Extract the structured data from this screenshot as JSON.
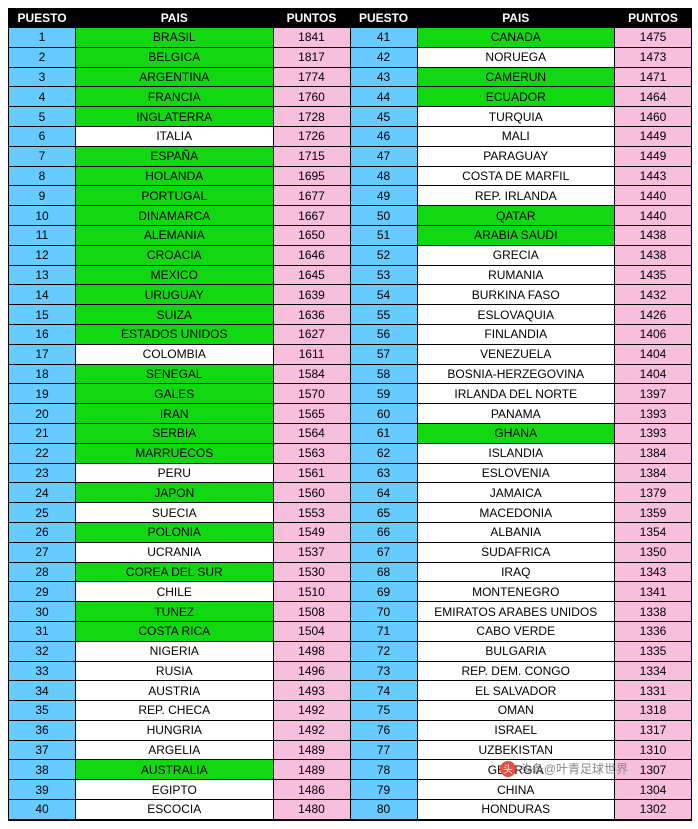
{
  "headers": {
    "puesto": "PUESTO",
    "pais": "PAIS",
    "puntos": "PUNTOS"
  },
  "colors": {
    "blue": "#66ccff",
    "green": "#11d811",
    "white": "#ffffff",
    "pink": "#f7bfdd",
    "header_bg": "#000000",
    "header_fg": "#ffffff"
  },
  "left": [
    {
      "rank": 1,
      "country": "BRASIL",
      "points": 1841,
      "pais_color": "green"
    },
    {
      "rank": 2,
      "country": "BELGICA",
      "points": 1817,
      "pais_color": "green"
    },
    {
      "rank": 3,
      "country": "ARGENTINA",
      "points": 1774,
      "pais_color": "green"
    },
    {
      "rank": 4,
      "country": "FRANCIA",
      "points": 1760,
      "pais_color": "green"
    },
    {
      "rank": 5,
      "country": "INGLATERRA",
      "points": 1728,
      "pais_color": "green"
    },
    {
      "rank": 6,
      "country": "ITALIA",
      "points": 1726,
      "pais_color": "white"
    },
    {
      "rank": 7,
      "country": "ESPAÑA",
      "points": 1715,
      "pais_color": "green"
    },
    {
      "rank": 8,
      "country": "HOLANDA",
      "points": 1695,
      "pais_color": "green"
    },
    {
      "rank": 9,
      "country": "PORTUGAL",
      "points": 1677,
      "pais_color": "green"
    },
    {
      "rank": 10,
      "country": "DINAMARCA",
      "points": 1667,
      "pais_color": "green"
    },
    {
      "rank": 11,
      "country": "ALEMANIA",
      "points": 1650,
      "pais_color": "green"
    },
    {
      "rank": 12,
      "country": "CROACIA",
      "points": 1646,
      "pais_color": "green"
    },
    {
      "rank": 13,
      "country": "MEXICO",
      "points": 1645,
      "pais_color": "green"
    },
    {
      "rank": 14,
      "country": "URUGUAY",
      "points": 1639,
      "pais_color": "green"
    },
    {
      "rank": 15,
      "country": "SUIZA",
      "points": 1636,
      "pais_color": "green"
    },
    {
      "rank": 16,
      "country": "ESTADOS UNIDOS",
      "points": 1627,
      "pais_color": "green"
    },
    {
      "rank": 17,
      "country": "COLOMBIA",
      "points": 1611,
      "pais_color": "white"
    },
    {
      "rank": 18,
      "country": "SENEGAL",
      "points": 1584,
      "pais_color": "green"
    },
    {
      "rank": 19,
      "country": "GALES",
      "points": 1570,
      "pais_color": "green"
    },
    {
      "rank": 20,
      "country": "IRAN",
      "points": 1565,
      "pais_color": "green"
    },
    {
      "rank": 21,
      "country": "SERBIA",
      "points": 1564,
      "pais_color": "green"
    },
    {
      "rank": 22,
      "country": "MARRUECOS",
      "points": 1563,
      "pais_color": "green"
    },
    {
      "rank": 23,
      "country": "PERU",
      "points": 1561,
      "pais_color": "white"
    },
    {
      "rank": 24,
      "country": "JAPON",
      "points": 1560,
      "pais_color": "green"
    },
    {
      "rank": 25,
      "country": "SUECIA",
      "points": 1553,
      "pais_color": "white"
    },
    {
      "rank": 26,
      "country": "POLONIA",
      "points": 1549,
      "pais_color": "green"
    },
    {
      "rank": 27,
      "country": "UCRANIA",
      "points": 1537,
      "pais_color": "white"
    },
    {
      "rank": 28,
      "country": "COREA DEL SUR",
      "points": 1530,
      "pais_color": "green"
    },
    {
      "rank": 29,
      "country": "CHILE",
      "points": 1510,
      "pais_color": "white"
    },
    {
      "rank": 30,
      "country": "TUNEZ",
      "points": 1508,
      "pais_color": "green"
    },
    {
      "rank": 31,
      "country": "COSTA RICA",
      "points": 1504,
      "pais_color": "green"
    },
    {
      "rank": 32,
      "country": "NIGERIA",
      "points": 1498,
      "pais_color": "white"
    },
    {
      "rank": 33,
      "country": "RUSIA",
      "points": 1496,
      "pais_color": "white"
    },
    {
      "rank": 34,
      "country": "AUSTRIA",
      "points": 1493,
      "pais_color": "white"
    },
    {
      "rank": 35,
      "country": "REP. CHECA",
      "points": 1492,
      "pais_color": "white"
    },
    {
      "rank": 36,
      "country": "HUNGRIA",
      "points": 1492,
      "pais_color": "white"
    },
    {
      "rank": 37,
      "country": "ARGELIA",
      "points": 1489,
      "pais_color": "white"
    },
    {
      "rank": 38,
      "country": "AUSTRALIA",
      "points": 1489,
      "pais_color": "green"
    },
    {
      "rank": 39,
      "country": "EGIPTO",
      "points": 1486,
      "pais_color": "white"
    },
    {
      "rank": 40,
      "country": "ESCOCIA",
      "points": 1480,
      "pais_color": "white"
    }
  ],
  "right": [
    {
      "rank": 41,
      "country": "CANADA",
      "points": 1475,
      "pais_color": "green"
    },
    {
      "rank": 42,
      "country": "NORUEGA",
      "points": 1473,
      "pais_color": "white"
    },
    {
      "rank": 43,
      "country": "CAMERUN",
      "points": 1471,
      "pais_color": "green"
    },
    {
      "rank": 44,
      "country": "ECUADOR",
      "points": 1464,
      "pais_color": "green"
    },
    {
      "rank": 45,
      "country": "TURQUIA",
      "points": 1460,
      "pais_color": "white"
    },
    {
      "rank": 46,
      "country": "MALI",
      "points": 1449,
      "pais_color": "white"
    },
    {
      "rank": 47,
      "country": "PARAGUAY",
      "points": 1449,
      "pais_color": "white"
    },
    {
      "rank": 48,
      "country": "COSTA DE MARFIL",
      "points": 1443,
      "pais_color": "white"
    },
    {
      "rank": 49,
      "country": "REP. IRLANDA",
      "points": 1440,
      "pais_color": "white"
    },
    {
      "rank": 50,
      "country": "QATAR",
      "points": 1440,
      "pais_color": "green"
    },
    {
      "rank": 51,
      "country": "ARABIA SAUDI",
      "points": 1438,
      "pais_color": "green"
    },
    {
      "rank": 52,
      "country": "GRECIA",
      "points": 1438,
      "pais_color": "white"
    },
    {
      "rank": 53,
      "country": "RUMANIA",
      "points": 1435,
      "pais_color": "white"
    },
    {
      "rank": 54,
      "country": "BURKINA FASO",
      "points": 1432,
      "pais_color": "white"
    },
    {
      "rank": 55,
      "country": "ESLOVAQUIA",
      "points": 1426,
      "pais_color": "white"
    },
    {
      "rank": 56,
      "country": "FINLANDIA",
      "points": 1406,
      "pais_color": "white"
    },
    {
      "rank": 57,
      "country": "VENEZUELA",
      "points": 1404,
      "pais_color": "white"
    },
    {
      "rank": 58,
      "country": "BOSNIA-HERZEGOVINA",
      "points": 1404,
      "pais_color": "white"
    },
    {
      "rank": 59,
      "country": "IRLANDA DEL NORTE",
      "points": 1397,
      "pais_color": "white"
    },
    {
      "rank": 60,
      "country": "PANAMA",
      "points": 1393,
      "pais_color": "white"
    },
    {
      "rank": 61,
      "country": "GHANA",
      "points": 1393,
      "pais_color": "green"
    },
    {
      "rank": 62,
      "country": "ISLANDIA",
      "points": 1384,
      "pais_color": "white"
    },
    {
      "rank": 63,
      "country": "ESLOVENIA",
      "points": 1384,
      "pais_color": "white"
    },
    {
      "rank": 64,
      "country": "JAMAICA",
      "points": 1379,
      "pais_color": "white"
    },
    {
      "rank": 65,
      "country": "MACEDONIA",
      "points": 1359,
      "pais_color": "white"
    },
    {
      "rank": 66,
      "country": "ALBANIA",
      "points": 1354,
      "pais_color": "white"
    },
    {
      "rank": 67,
      "country": "SUDAFRICA",
      "points": 1350,
      "pais_color": "white"
    },
    {
      "rank": 68,
      "country": "IRAQ",
      "points": 1343,
      "pais_color": "white"
    },
    {
      "rank": 69,
      "country": "MONTENEGRO",
      "points": 1341,
      "pais_color": "white"
    },
    {
      "rank": 70,
      "country": "EMIRATOS ARABES UNIDOS",
      "points": 1338,
      "pais_color": "white"
    },
    {
      "rank": 71,
      "country": "CABO VERDE",
      "points": 1336,
      "pais_color": "white"
    },
    {
      "rank": 72,
      "country": "BULGARIA",
      "points": 1335,
      "pais_color": "white"
    },
    {
      "rank": 73,
      "country": "REP. DEM. CONGO",
      "points": 1334,
      "pais_color": "white"
    },
    {
      "rank": 74,
      "country": "EL SALVADOR",
      "points": 1331,
      "pais_color": "white"
    },
    {
      "rank": 75,
      "country": "OMAN",
      "points": 1318,
      "pais_color": "white"
    },
    {
      "rank": 76,
      "country": "ISRAEL",
      "points": 1317,
      "pais_color": "white"
    },
    {
      "rank": 77,
      "country": "UZBEKISTAN",
      "points": 1310,
      "pais_color": "white"
    },
    {
      "rank": 78,
      "country": "GEORGIA",
      "points": 1307,
      "pais_color": "white"
    },
    {
      "rank": 79,
      "country": "CHINA",
      "points": 1304,
      "pais_color": "white"
    },
    {
      "rank": 80,
      "country": "HONDURAS",
      "points": 1302,
      "pais_color": "white"
    }
  ],
  "watermark": {
    "text": "头条@叶青足球世界"
  }
}
